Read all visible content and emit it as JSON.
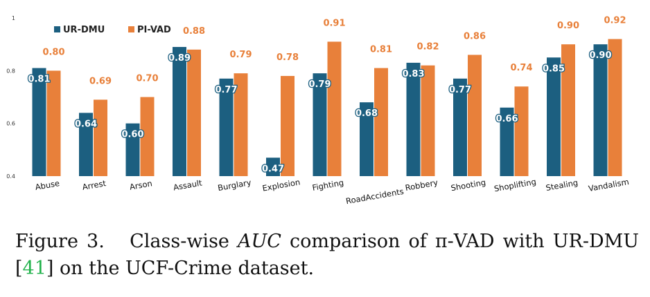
{
  "chart_data": {
    "type": "bar",
    "categories": [
      "Abuse",
      "Arrest",
      "Arson",
      "Assault",
      "Burglary",
      "Explosion",
      "Fighting",
      "RoadAccidents",
      "Robbery",
      "Shooting",
      "Shoplifting",
      "Stealing",
      "Vandalism"
    ],
    "series": [
      {
        "name": "UR-DMU",
        "color": "#1c5f80",
        "values": [
          0.81,
          0.64,
          0.6,
          0.89,
          0.77,
          0.47,
          0.79,
          0.68,
          0.83,
          0.77,
          0.66,
          0.85,
          0.9
        ]
      },
      {
        "name": "PI-VAD",
        "color": "#e8803a",
        "values": [
          0.8,
          0.69,
          0.7,
          0.88,
          0.79,
          0.78,
          0.91,
          0.81,
          0.82,
          0.86,
          0.74,
          0.9,
          0.92
        ]
      }
    ],
    "ylim": [
      0.4,
      1.0
    ],
    "yticks": [
      "0.4",
      "0.6",
      "0.8",
      "1"
    ],
    "legend_position": "top-left",
    "grid": false
  },
  "caption": {
    "prefix": "Figure 3.",
    "text1": "Class-wise",
    "math": "AUC",
    "text2": "comparison of π-VAD with UR-DMU [",
    "ref": "41",
    "text3": "] on the UCF-Crime dataset."
  }
}
